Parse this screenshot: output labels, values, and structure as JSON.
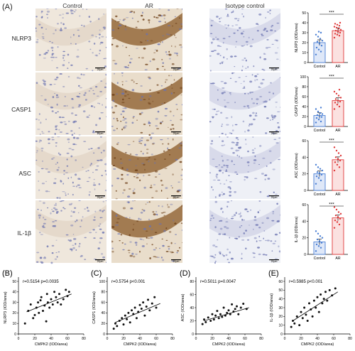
{
  "figure": {
    "panel_A": "(A)",
    "columns": [
      "Control",
      "AR",
      "Isotype control"
    ],
    "rows": [
      "NLRP3",
      "CASP1",
      "ASC",
      "IL-1β"
    ],
    "scale_label": "20μm",
    "significance": "***"
  },
  "colors": {
    "control_bar": "#4a7fd4",
    "ar_bar": "#e0393a",
    "dab_brown": "#8a5a28",
    "hematoxylin": "#6a72b0",
    "tissue_bg": "#efe7dc"
  },
  "chart_data": [
    {
      "type": "bar",
      "ylabel": "NLRP3 (IOD/area)",
      "categories": [
        "Control",
        "AR"
      ],
      "values": [
        20,
        32
      ],
      "ylim": [
        0,
        50
      ],
      "yticks": [
        0,
        10,
        20,
        30,
        40,
        50
      ],
      "points": [
        [
          8,
          11,
          13,
          15,
          17,
          19,
          21,
          22,
          24,
          26,
          28,
          30,
          31
        ],
        [
          25,
          27,
          28,
          29,
          30,
          31,
          32,
          33,
          34,
          35,
          36,
          37,
          38,
          39,
          40
        ]
      ]
    },
    {
      "type": "bar",
      "ylabel": "CASP1 (IOD/area)",
      "categories": [
        "Control",
        "AR"
      ],
      "values": [
        22,
        52
      ],
      "ylim": [
        0,
        100
      ],
      "yticks": [
        0,
        20,
        40,
        60,
        80,
        100
      ],
      "points": [
        [
          8,
          10,
          14,
          17,
          19,
          21,
          23,
          25,
          27,
          30,
          35,
          38
        ],
        [
          35,
          40,
          44,
          48,
          50,
          52,
          55,
          58,
          62,
          66,
          70,
          74
        ]
      ]
    },
    {
      "type": "bar",
      "ylabel": "ASC (IOD/area)",
      "categories": [
        "Control",
        "AR"
      ],
      "values": [
        20,
        37
      ],
      "ylim": [
        0,
        60
      ],
      "yticks": [
        0,
        20,
        40,
        60
      ],
      "points": [
        [
          8,
          12,
          15,
          17,
          19,
          21,
          22,
          24,
          26,
          28,
          31
        ],
        [
          24,
          28,
          31,
          34,
          36,
          38,
          40,
          42,
          45,
          48,
          52
        ]
      ]
    },
    {
      "type": "bar",
      "ylabel": "IL-1β (IOD/area)",
      "categories": [
        "Control",
        "AR"
      ],
      "values": [
        15,
        44
      ],
      "ylim": [
        0,
        60
      ],
      "yticks": [
        0,
        20,
        40,
        60
      ],
      "points": [
        [
          4,
          8,
          10,
          12,
          14,
          16,
          18,
          20,
          22,
          25,
          28
        ],
        [
          32,
          36,
          39,
          41,
          43,
          45,
          47,
          49,
          51,
          54,
          57
        ]
      ]
    },
    {
      "type": "scatter",
      "panel": "(B)",
      "annotation": "r=0.5154 p=0.0035",
      "ylabel": "NLRP3 (IOD/area)",
      "xlabel": "CMPK2 (IOD/area)",
      "xlim": [
        0,
        80
      ],
      "ylim": [
        0,
        50
      ],
      "xticks": [
        0,
        20,
        40,
        60,
        80
      ],
      "yticks": [
        0,
        10,
        20,
        30,
        40,
        50
      ],
      "line": [
        [
          10,
          21
        ],
        [
          65,
          38
        ]
      ],
      "x": [
        8,
        12,
        15,
        18,
        20,
        22,
        24,
        25,
        27,
        28,
        30,
        32,
        34,
        35,
        36,
        38,
        40,
        42,
        44,
        46,
        48,
        50,
        52,
        55,
        58,
        60,
        62
      ],
      "y": [
        10,
        22,
        28,
        15,
        18,
        25,
        30,
        20,
        32,
        35,
        22,
        27,
        12,
        38,
        30,
        25,
        33,
        28,
        40,
        35,
        30,
        38,
        28,
        33,
        42,
        36,
        40
      ]
    },
    {
      "type": "scatter",
      "panel": "(C)",
      "annotation": "r=0.5754 p<0.001",
      "ylabel": "CASP1 (IOD/area)",
      "xlabel": "CMPK2 (IOD/area)",
      "xlim": [
        0,
        80
      ],
      "ylim": [
        0,
        100
      ],
      "xticks": [
        0,
        20,
        40,
        60,
        80
      ],
      "yticks": [
        0,
        20,
        40,
        60,
        80,
        100
      ],
      "line": [
        [
          10,
          22
        ],
        [
          65,
          58
        ]
      ],
      "x": [
        8,
        10,
        12,
        15,
        18,
        20,
        22,
        24,
        26,
        28,
        30,
        32,
        34,
        36,
        38,
        40,
        42,
        44,
        46,
        48,
        50,
        52,
        55,
        58,
        60
      ],
      "y": [
        10,
        20,
        15,
        25,
        30,
        18,
        35,
        28,
        40,
        22,
        45,
        38,
        50,
        30,
        42,
        55,
        48,
        60,
        35,
        52,
        65,
        45,
        58,
        70,
        50
      ]
    },
    {
      "type": "scatter",
      "panel": "(D)",
      "annotation": "r=0.5011 p=0.0047",
      "ylabel": "ASC (IOD/area)",
      "xlabel": "CMPK2 (IOD/area)",
      "xlim": [
        0,
        80
      ],
      "ylim": [
        0,
        80
      ],
      "xticks": [
        0,
        20,
        40,
        60,
        80
      ],
      "yticks": [
        0,
        20,
        40,
        60,
        80
      ],
      "line": [
        [
          10,
          20
        ],
        [
          65,
          40
        ]
      ],
      "x": [
        8,
        10,
        12,
        15,
        18,
        20,
        22,
        24,
        26,
        28,
        30,
        32,
        34,
        36,
        38,
        40,
        42,
        44,
        46,
        48,
        50,
        52,
        55,
        58,
        62
      ],
      "y": [
        15,
        22,
        18,
        25,
        20,
        30,
        22,
        28,
        35,
        24,
        30,
        26,
        40,
        28,
        32,
        36,
        30,
        45,
        34,
        38,
        42,
        30,
        40,
        46,
        38
      ]
    },
    {
      "type": "scatter",
      "panel": "(E)",
      "annotation": "r=0.5985 p<0.001",
      "ylabel": "IL-1β (IOD/area)",
      "xlabel": "CMPK2 (IOD/area)",
      "xlim": [
        0,
        80
      ],
      "ylim": [
        0,
        60
      ],
      "xticks": [
        0,
        20,
        40,
        60,
        80
      ],
      "yticks": [
        0,
        10,
        20,
        30,
        40,
        50,
        60
      ],
      "line": [
        [
          10,
          15
        ],
        [
          65,
          48
        ]
      ],
      "x": [
        8,
        10,
        12,
        15,
        18,
        20,
        22,
        24,
        26,
        28,
        30,
        32,
        34,
        36,
        38,
        40,
        42,
        44,
        46,
        48,
        50,
        52,
        55,
        58,
        62
      ],
      "y": [
        8,
        15,
        12,
        20,
        10,
        25,
        18,
        30,
        22,
        15,
        35,
        28,
        20,
        38,
        30,
        42,
        25,
        45,
        35,
        40,
        48,
        38,
        50,
        44,
        52
      ]
    }
  ]
}
